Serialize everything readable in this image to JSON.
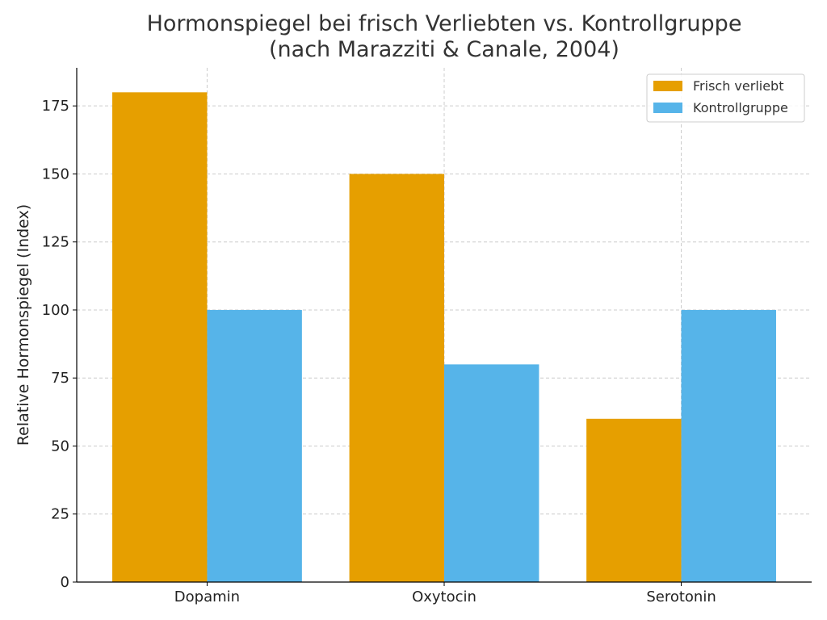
{
  "chart_data": {
    "type": "bar",
    "title": "Hormonspiegel bei frisch Verliebten vs. Kontrollgruppe",
    "subtitle": "(nach Marazziti & Canale, 2004)",
    "xlabel": "",
    "ylabel": "Relative Hormonspiegel (Index)",
    "categories": [
      "Dopamin",
      "Oxytocin",
      "Serotonin"
    ],
    "series": [
      {
        "name": "Frisch verliebt",
        "values": [
          180,
          150,
          60
        ],
        "color": "#E69F00"
      },
      {
        "name": "Kontrollgruppe",
        "values": [
          100,
          80,
          100
        ],
        "color": "#56B4E9"
      }
    ],
    "ylim": [
      0,
      189
    ],
    "yticks": [
      0,
      25,
      50,
      75,
      100,
      125,
      150,
      175
    ],
    "grid": true,
    "legend_position": "top-right"
  }
}
